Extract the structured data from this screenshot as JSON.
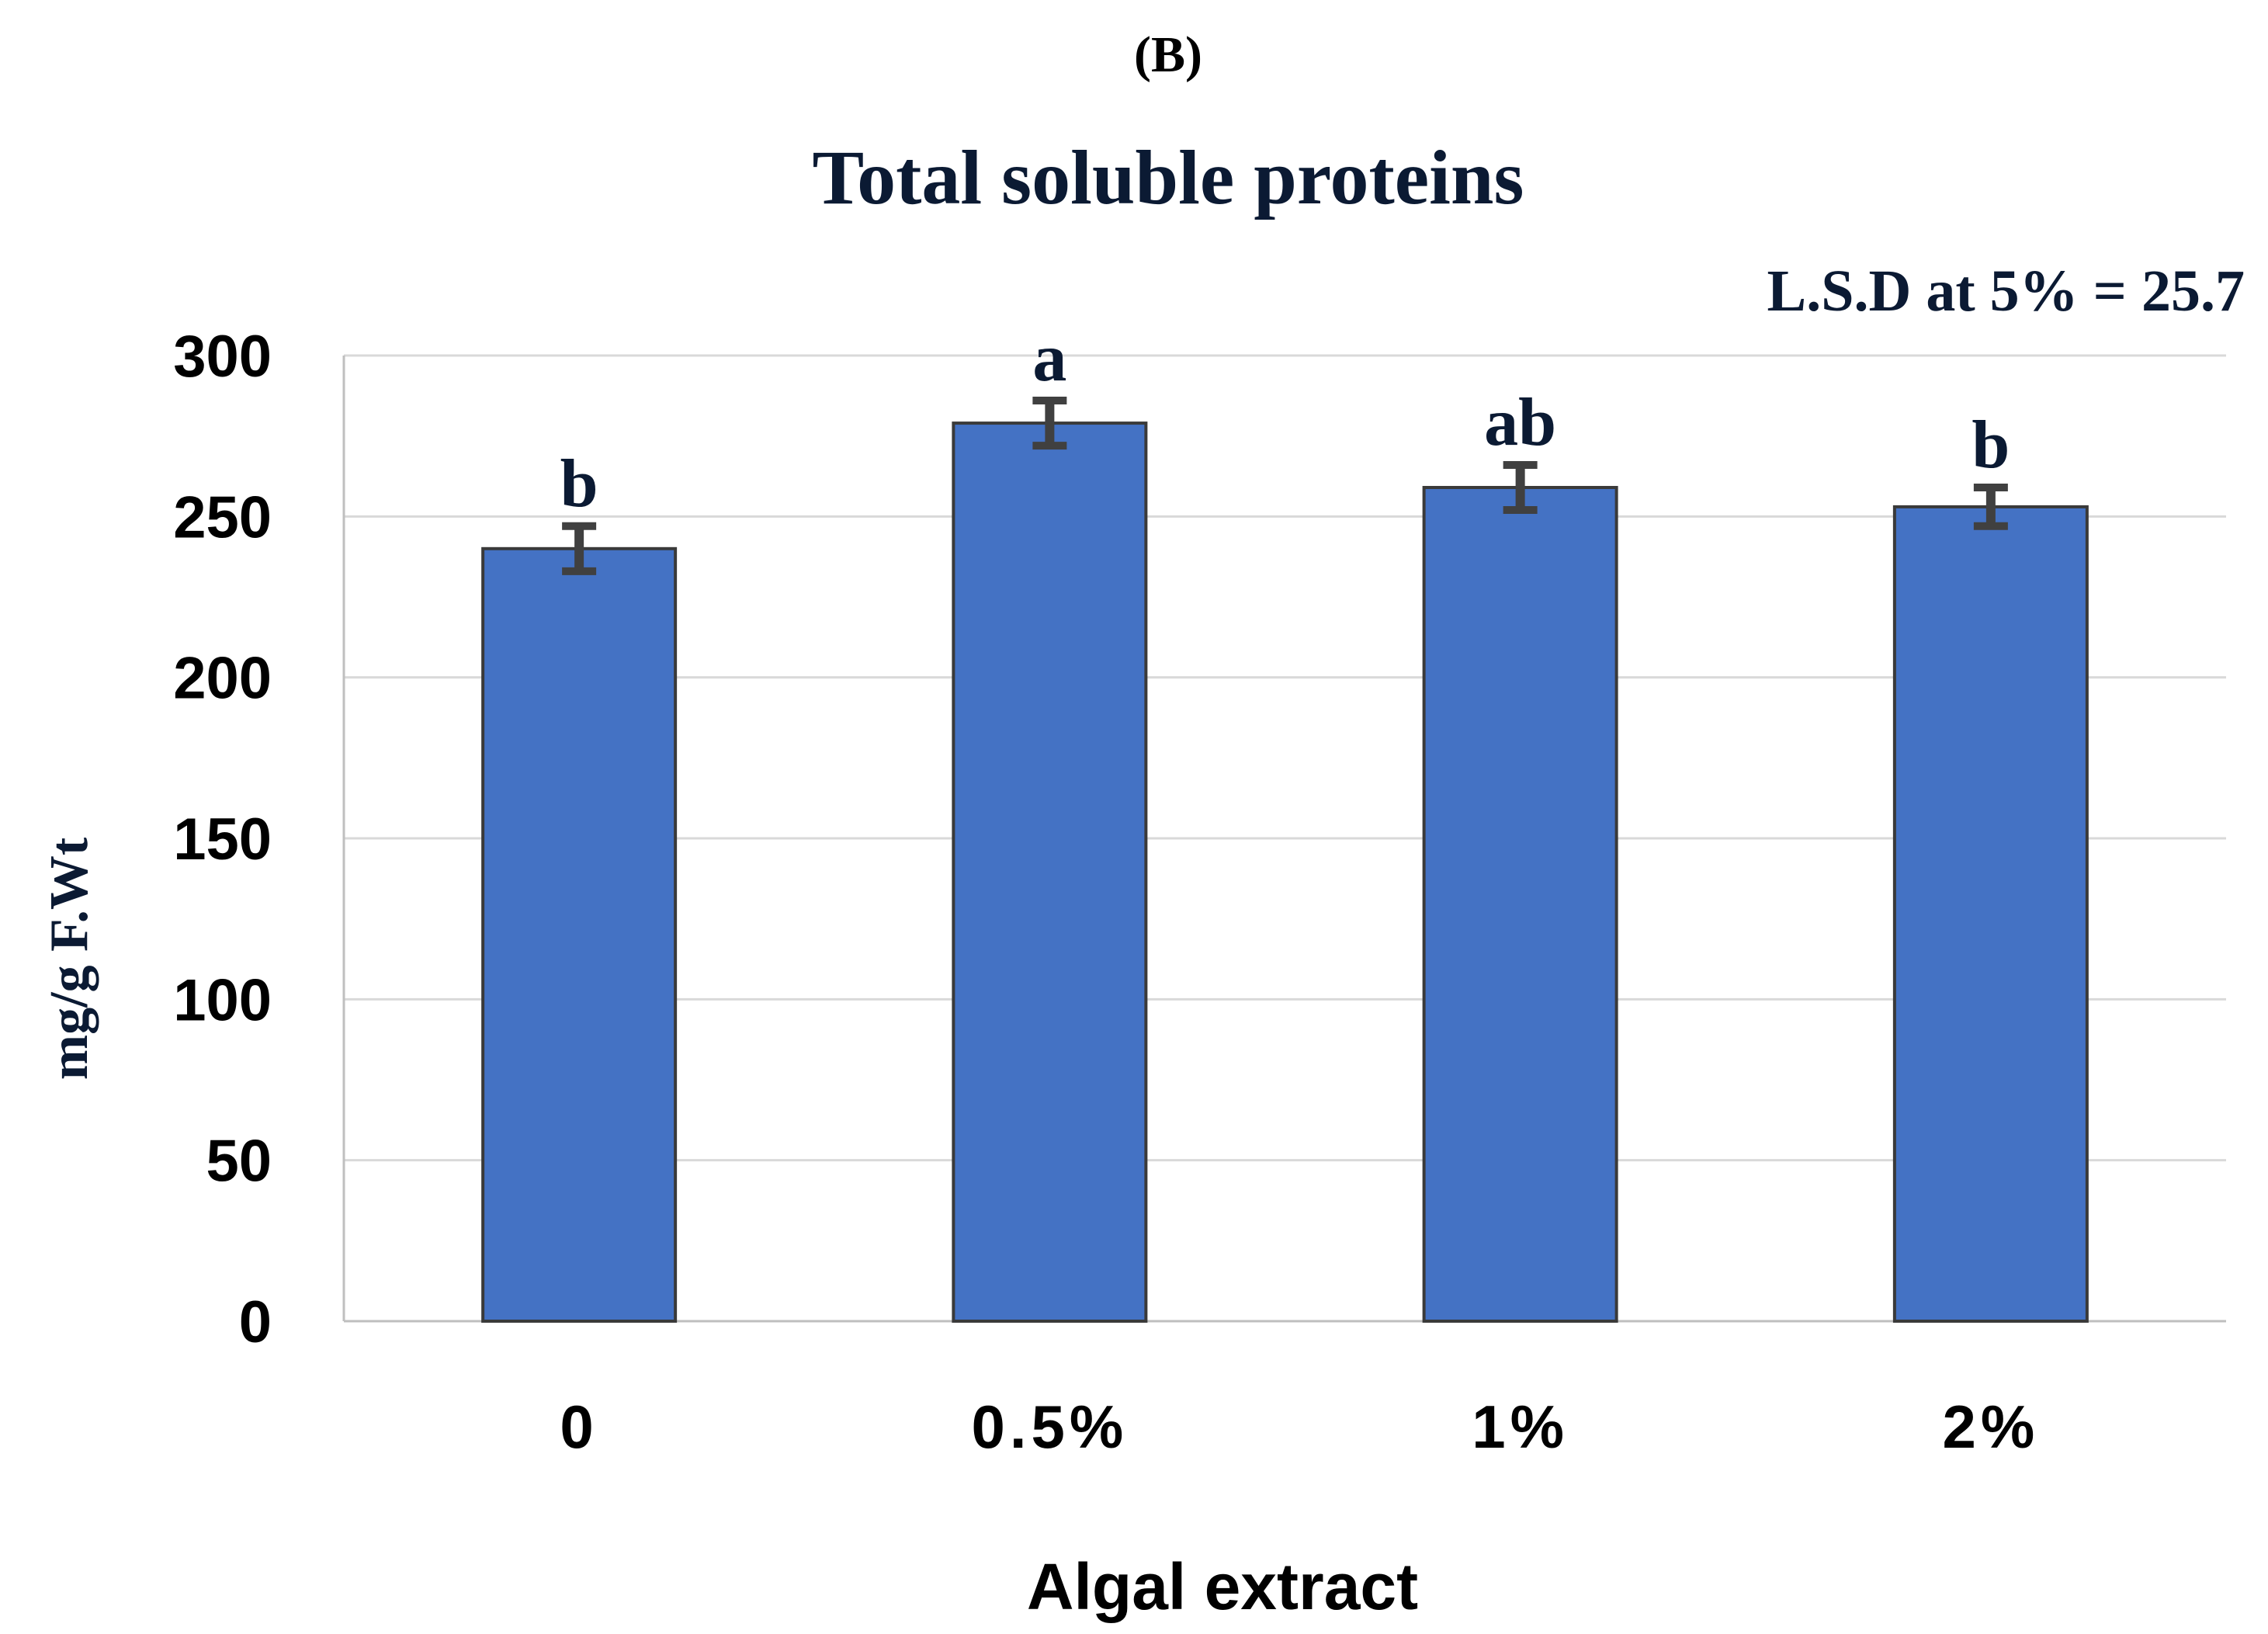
{
  "panel_label": "(B)",
  "chart_data": {
    "type": "bar",
    "title": "Total soluble proteins",
    "annotation": "L.S.D at 5% = 25.7",
    "xlabel": "Algal extract",
    "ylabel": "mg/g F.Wt",
    "categories": [
      "0",
      "0.5%",
      "1%",
      "2%"
    ],
    "values": [
      240,
      279,
      259,
      253
    ],
    "errors": [
      7,
      7,
      7,
      6
    ],
    "significance_letters": [
      "b",
      "a",
      "ab",
      "b"
    ],
    "ylim": [
      0,
      300
    ],
    "yticks": [
      "0",
      "50",
      "100",
      "150",
      "200",
      "250",
      "300"
    ],
    "grid": true,
    "legend": "none",
    "colors": {
      "bar": "#4472c4",
      "bar_edge": "#3a3a3a",
      "error_bar": "#404040",
      "grid": "#d9d9d9",
      "title": "#0b1a33"
    }
  }
}
